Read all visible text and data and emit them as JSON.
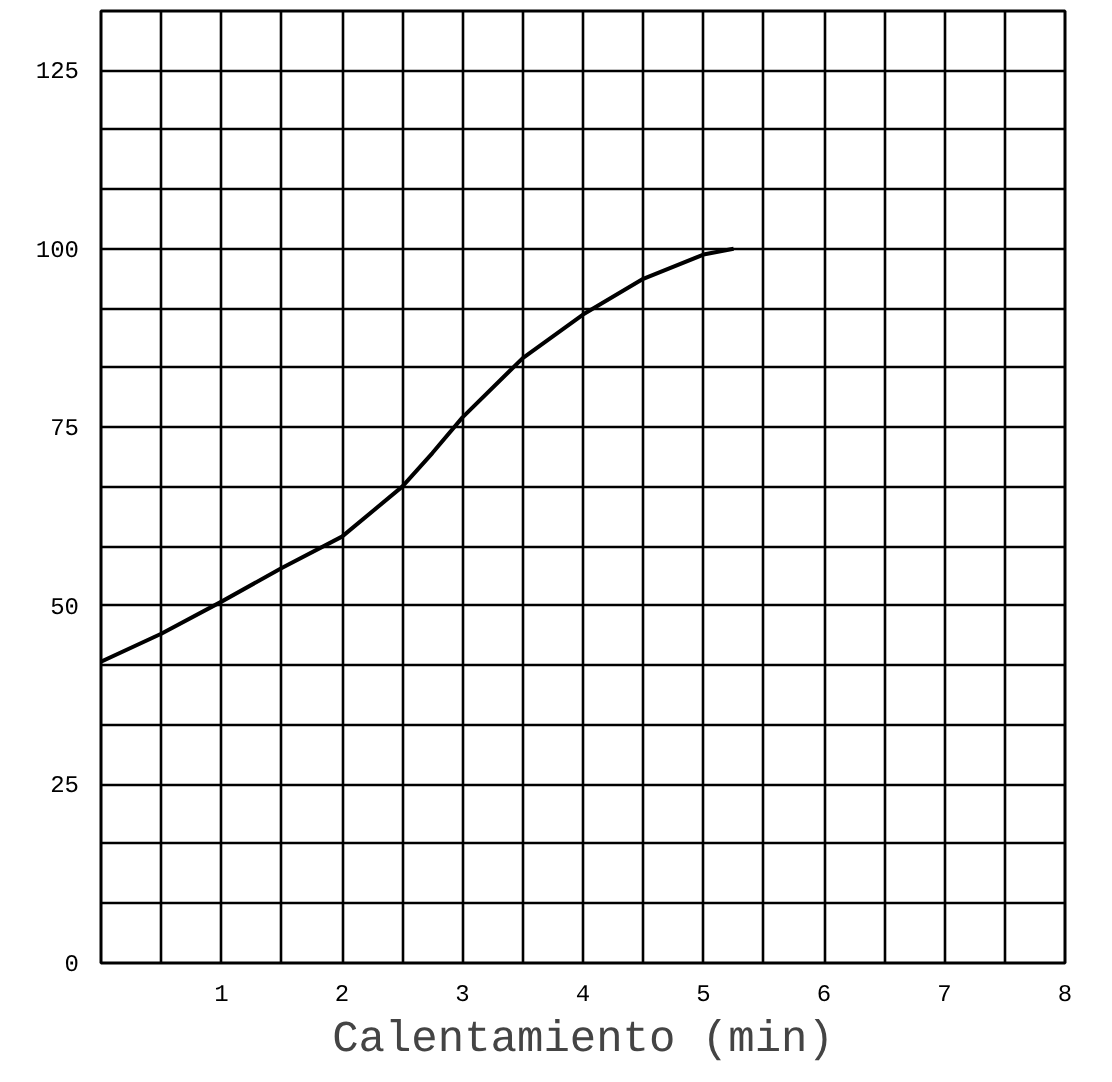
{
  "chart_data": {
    "type": "line",
    "xlabel": "Calentamiento (min)",
    "x": [
      0,
      0.5,
      1,
      1.5,
      2,
      2.5,
      2.75,
      3,
      3.5,
      4,
      4.5,
      5,
      5.25
    ],
    "series": [
      {
        "color": "#000000",
        "values": [
          42.2,
          46.1,
          50.6,
          55.3,
          59.7,
          66.7,
          71.4,
          76.4,
          84.7,
          90.8,
          95.8,
          99.2,
          100
        ]
      }
    ],
    "xlim": [
      0,
      8
    ],
    "ylim": [
      0,
      133.3
    ],
    "xticks": [
      {
        "value": 0,
        "label": null
      },
      {
        "value": 0.5,
        "label": null
      },
      1,
      {
        "value": 1.5,
        "label": null
      },
      2,
      {
        "value": 2.5,
        "label": null
      },
      3,
      {
        "value": 3.5,
        "label": null
      },
      4,
      {
        "value": 4.5,
        "label": null
      },
      5,
      {
        "value": 5.5,
        "label": null
      },
      6,
      {
        "value": 6.5,
        "label": null
      },
      7,
      {
        "value": 7.5,
        "label": null
      },
      8
    ],
    "yticks": [
      0,
      {
        "value": 8.33,
        "label": null
      },
      {
        "value": 16.67,
        "label": null
      },
      25,
      {
        "value": 33.33,
        "label": null
      },
      {
        "value": 41.67,
        "label": null
      },
      50,
      {
        "value": 58.33,
        "label": null
      },
      {
        "value": 66.67,
        "label": null
      },
      75,
      {
        "value": 83.33,
        "label": null
      },
      {
        "value": 91.67,
        "label": null
      },
      100,
      {
        "value": 108.33,
        "label": null
      },
      {
        "value": 116.67,
        "label": null
      },
      125
    ],
    "grid": true,
    "marker": "none",
    "line_style": "solid"
  }
}
